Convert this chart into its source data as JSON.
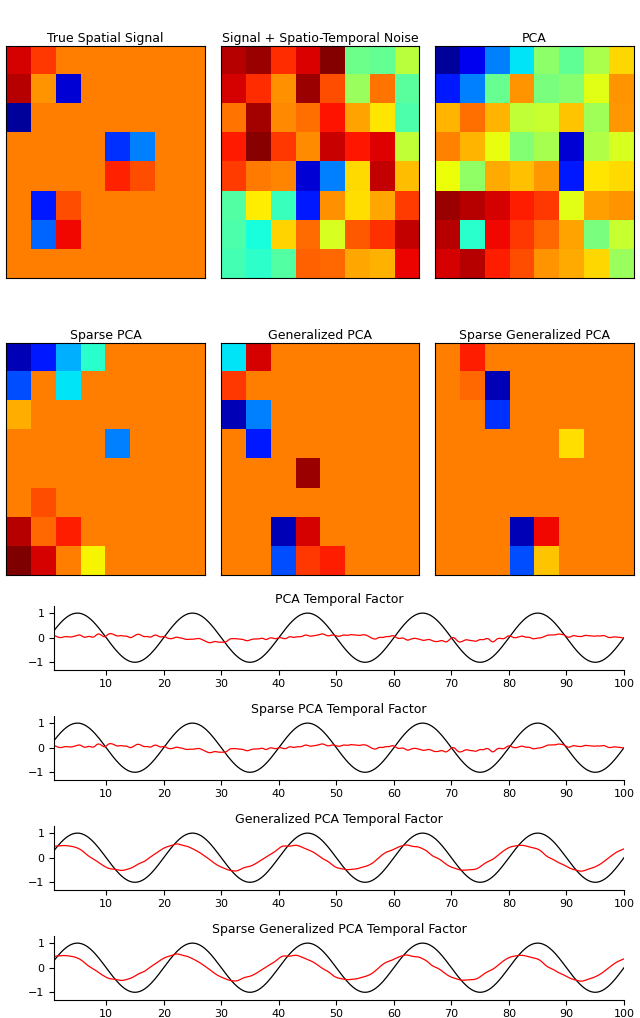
{
  "titles_row1": [
    "True Spatial Signal",
    "Signal + Spatio-Temporal Noise",
    "PCA"
  ],
  "titles_row2": [
    "Sparse PCA",
    "Generalized PCA",
    "Sparse Generalized PCA"
  ],
  "temporal_titles": [
    "PCA Temporal Factor",
    "Sparse PCA Temporal Factor",
    "Generalized PCA Temporal Factor",
    "Sparse Generalized PCA Temporal Factor"
  ],
  "background_color": "white",
  "line_color_black": "black",
  "line_color_red": "red",
  "grid_size": 8,
  "font_size_title": 9,
  "font_size_tick": 8,
  "vmin": -1.0,
  "vmax": 1.0,
  "cyan_bg": 0.55,
  "time_xlim": [
    1,
    100
  ],
  "time_ylim": [
    -1.3,
    1.3
  ],
  "time_yticks": [
    -1,
    0,
    1
  ],
  "time_xticks": [
    10,
    20,
    30,
    40,
    50,
    60,
    70,
    80,
    90,
    100
  ]
}
